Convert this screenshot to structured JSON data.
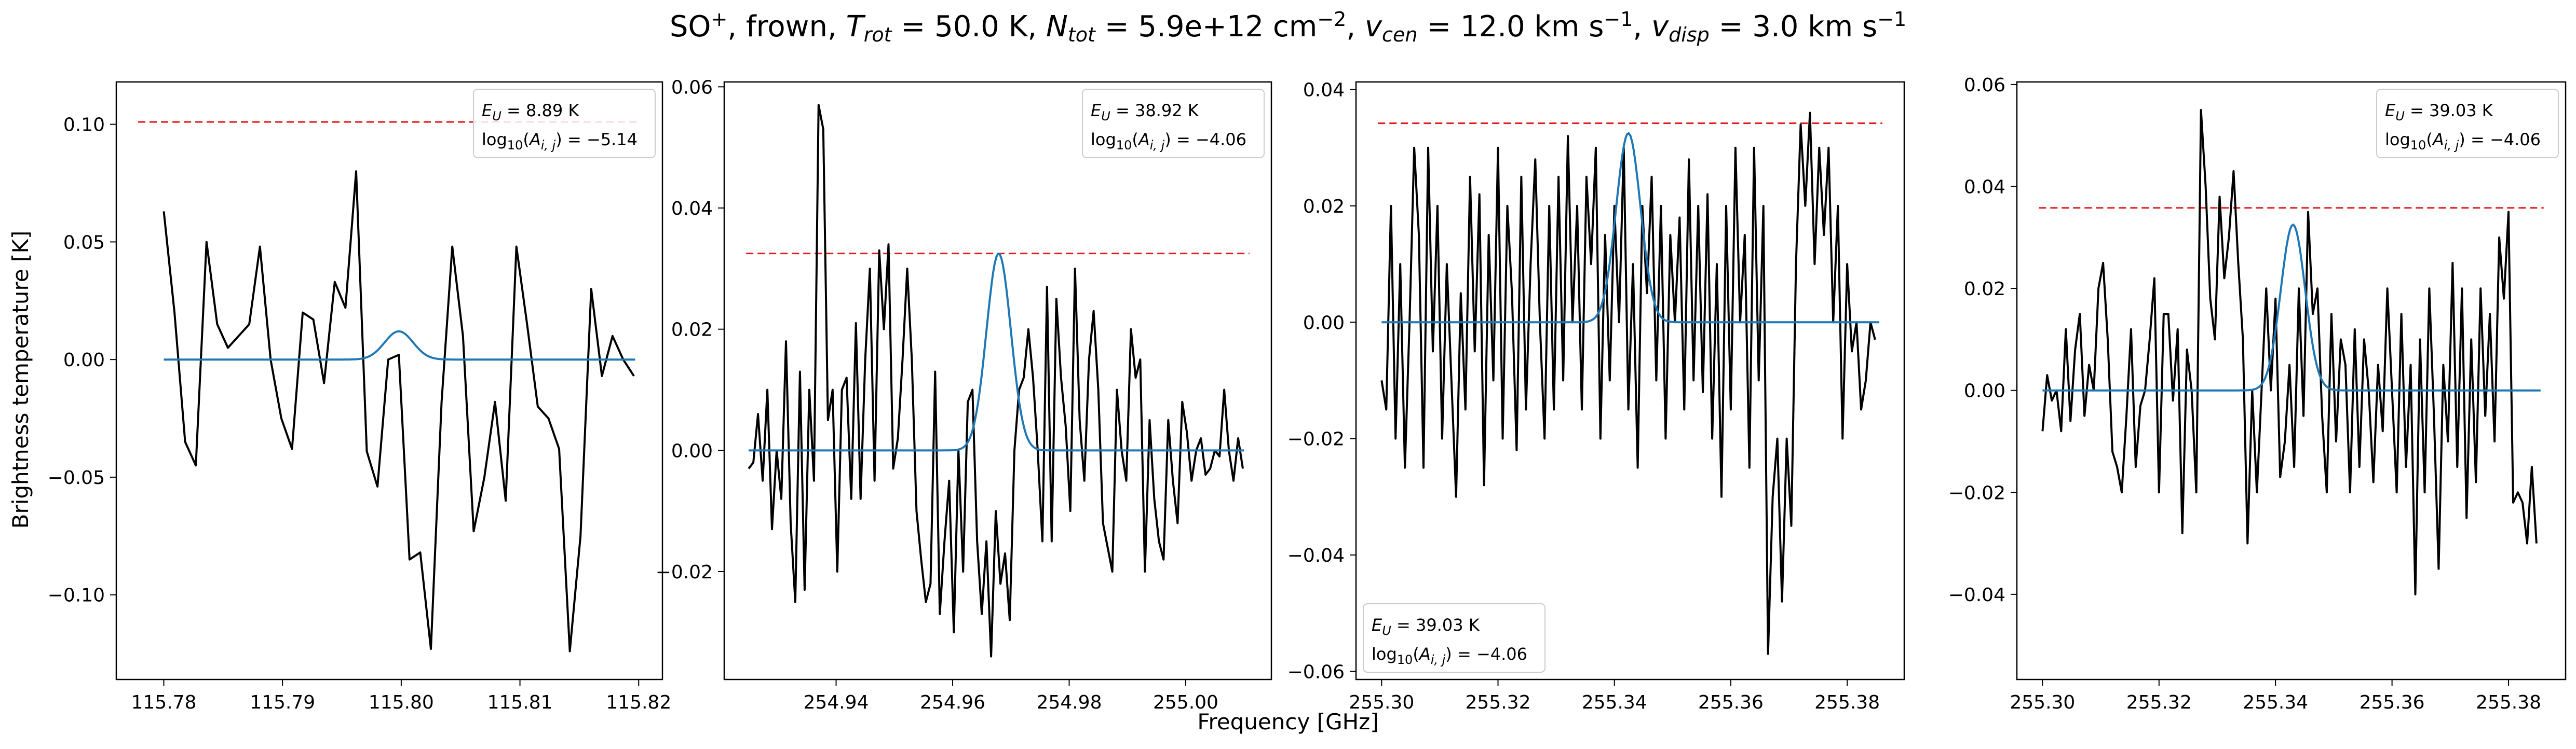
{
  "figure": {
    "title": "SO$^+$, frown, $T_{rot}$ = 50.0 K, $N_{tot}$ = 5.9e+12 cm$^{-2}$, $v_{cen}$ = 12.0 km s$^{-1}$, $v_{disp}$ = 3.0 km s$^{-1}$",
    "title_parts": {
      "species": "SO",
      "species_sup": "+",
      "mode": "frown",
      "t_rot": "50.0 K",
      "n_tot": "5.9e+12 cm",
      "n_tot_exp": "−2",
      "v_cen": "12.0 km s",
      "v_disp": "3.0 km s",
      "vel_exp": "−1"
    },
    "xlabel": "Frequency [GHz]",
    "ylabel": "Brightness temperature [K]",
    "colors": {
      "data": "#000000",
      "model": "#1f77b4",
      "threshold": "#e41a1c"
    }
  },
  "chart_data": [
    {
      "type": "line",
      "legend": {
        "eu": "8.89 K",
        "loga": "−5.14",
        "placement": "top-right"
      },
      "xlim": [
        115.776,
        115.822
      ],
      "ylim": [
        -0.136,
        0.118
      ],
      "xticks": [
        115.78,
        115.79,
        115.8,
        115.81,
        115.82
      ],
      "xtick_labels": [
        "115.78",
        "115.79",
        "115.80",
        "115.81",
        "115.82"
      ],
      "yticks": [
        -0.1,
        -0.05,
        0.0,
        0.05,
        0.1
      ],
      "ytick_labels": [
        "−0.10",
        "−0.05",
        "0.00",
        "0.05",
        "0.10"
      ],
      "threshold": 0.101,
      "model": {
        "center": 115.7998,
        "amp": 0.012,
        "sigma": 0.0012,
        "x_range": [
          115.78,
          115.8197
        ]
      },
      "x": [
        115.78,
        115.7809,
        115.7818,
        115.7827,
        115.7836,
        115.7845,
        115.7854,
        115.7863,
        115.7872,
        115.7881,
        115.789,
        115.7899,
        115.7908,
        115.7917,
        115.7926,
        115.7935,
        115.7944,
        115.7953,
        115.7962,
        115.7971,
        115.798,
        115.7989,
        115.7998,
        115.8007,
        115.8016,
        115.8025,
        115.8034,
        115.8043,
        115.8052,
        115.8061,
        115.807,
        115.8079,
        115.8088,
        115.8097,
        115.8106,
        115.8115,
        115.8124,
        115.8133,
        115.8142,
        115.8151,
        115.816,
        115.8169,
        115.8178,
        115.8187,
        115.8196
      ],
      "y": [
        0.063,
        0.02,
        -0.035,
        -0.045,
        0.05,
        0.015,
        0.005,
        0.01,
        0.015,
        0.048,
        0.0,
        -0.025,
        -0.038,
        0.02,
        0.017,
        -0.01,
        0.033,
        0.022,
        0.08,
        -0.039,
        -0.054,
        0.0,
        0.002,
        -0.085,
        -0.082,
        -0.123,
        -0.018,
        0.048,
        0.01,
        -0.073,
        -0.05,
        -0.018,
        -0.06,
        0.048,
        0.015,
        -0.02,
        -0.025,
        -0.038,
        -0.124,
        -0.075,
        0.03,
        -0.007,
        0.01,
        0.0,
        -0.007
      ]
    },
    {
      "type": "line",
      "legend": {
        "eu": "38.92 K",
        "loga": "−4.06",
        "placement": "top-right"
      },
      "xlim": [
        254.9208,
        255.0147
      ],
      "ylim": [
        -0.0378,
        0.0608
      ],
      "xticks": [
        254.94,
        254.96,
        254.98,
        255.0
      ],
      "xtick_labels": [
        "254.94",
        "254.96",
        "254.98",
        "255.00"
      ],
      "yticks": [
        -0.02,
        0.0,
        0.02,
        0.04,
        0.06
      ],
      "ytick_labels": [
        "−0.02",
        "0.00",
        "0.02",
        "0.04",
        "0.06"
      ],
      "threshold": 0.0325,
      "model": {
        "center": 254.9679,
        "amp": 0.0325,
        "sigma": 0.0021,
        "x_range": [
          254.925,
          255.01
        ]
      },
      "x": [
        254.925,
        254.9258,
        254.9266,
        254.9274,
        254.9282,
        254.929,
        254.9298,
        254.9306,
        254.9314,
        254.9322,
        254.933,
        254.9338,
        254.9346,
        254.9354,
        254.9362,
        254.937,
        254.9378,
        254.9386,
        254.9394,
        254.9402,
        254.941,
        254.9418,
        254.9426,
        254.9434,
        254.9442,
        254.945,
        254.9458,
        254.9466,
        254.9474,
        254.9482,
        254.949,
        254.9498,
        254.9506,
        254.9514,
        254.9522,
        254.953,
        254.9538,
        254.9546,
        254.9554,
        254.9562,
        254.957,
        254.9578,
        254.9586,
        254.9594,
        254.9602,
        254.961,
        254.9618,
        254.9626,
        254.9634,
        254.9642,
        254.965,
        254.9658,
        254.9666,
        254.9674,
        254.9682,
        254.969,
        254.9698,
        254.9706,
        254.9714,
        254.9722,
        254.973,
        254.9738,
        254.9746,
        254.9754,
        254.9762,
        254.977,
        254.9778,
        254.9786,
        254.9794,
        254.9802,
        254.981,
        254.9818,
        254.9826,
        254.9834,
        254.9842,
        254.985,
        254.9858,
        254.9866,
        254.9874,
        254.9882,
        254.989,
        254.9898,
        254.9906,
        254.9914,
        254.9922,
        254.993,
        254.9938,
        254.9946,
        254.9954,
        254.9962,
        254.997,
        254.9978,
        254.9986,
        254.9994,
        255.0002,
        255.001,
        255.0018,
        255.0026,
        255.0034,
        255.0042,
        255.005,
        255.0058,
        255.0066,
        255.0074,
        255.0082,
        255.009,
        255.0098
      ],
      "y": [
        -0.003,
        -0.002,
        0.006,
        -0.005,
        0.01,
        -0.013,
        0.0,
        -0.008,
        0.018,
        -0.012,
        -0.025,
        0.013,
        -0.023,
        0.01,
        -0.005,
        0.057,
        0.053,
        0.005,
        0.01,
        -0.02,
        0.01,
        0.012,
        -0.008,
        0.021,
        -0.008,
        0.015,
        0.03,
        -0.005,
        0.033,
        0.02,
        0.034,
        -0.003,
        0.002,
        0.015,
        0.03,
        0.015,
        -0.01,
        -0.018,
        -0.025,
        -0.022,
        0.013,
        -0.027,
        -0.015,
        -0.005,
        -0.03,
        0.0,
        -0.02,
        0.008,
        0.01,
        -0.015,
        -0.027,
        -0.015,
        -0.034,
        -0.01,
        -0.022,
        -0.017,
        -0.028,
        0.0,
        0.01,
        0.012,
        0.02,
        0.012,
        0.0,
        -0.015,
        0.027,
        -0.015,
        0.025,
        0.012,
        0.004,
        -0.01,
        0.03,
        0.005,
        -0.005,
        0.015,
        0.023,
        0.01,
        -0.012,
        -0.016,
        -0.02,
        0.01,
        0.0,
        -0.005,
        0.02,
        0.012,
        0.015,
        -0.02,
        0.005,
        -0.008,
        -0.015,
        -0.018,
        0.005,
        -0.005,
        -0.012,
        0.008,
        0.003,
        -0.005,
        0.0,
        0.002,
        -0.004,
        -0.003,
        0.0,
        -0.001,
        0.01,
        0.0,
        -0.005,
        0.002,
        -0.003
      ]
    },
    {
      "type": "line",
      "legend": {
        "eu": "39.03 K",
        "loga": "−4.06",
        "placement": "bottom-left"
      },
      "xlim": [
        255.2956,
        255.3898
      ],
      "ylim": [
        -0.0614,
        0.0413
      ],
      "xticks": [
        255.3,
        255.32,
        255.34,
        255.36,
        255.38
      ],
      "xtick_labels": [
        "255.30",
        "255.32",
        "255.34",
        "255.36",
        "255.38"
      ],
      "yticks": [
        -0.06,
        -0.04,
        -0.02,
        0.0,
        0.02,
        0.04
      ],
      "ytick_labels": [
        "−0.06",
        "−0.04",
        "−0.02",
        "0.00",
        "0.02",
        "0.04"
      ],
      "threshold": 0.0342,
      "model": {
        "center": 255.3424,
        "amp": 0.0325,
        "sigma": 0.0021,
        "x_range": [
          255.3,
          255.3855
        ]
      },
      "x": [
        255.3,
        255.3008,
        255.3016,
        255.3024,
        255.3032,
        255.304,
        255.3048,
        255.3056,
        255.3064,
        255.3072,
        255.308,
        255.3088,
        255.3096,
        255.3104,
        255.3112,
        255.312,
        255.3128,
        255.3136,
        255.3144,
        255.3152,
        255.316,
        255.3168,
        255.3176,
        255.3184,
        255.3192,
        255.32,
        255.3208,
        255.3216,
        255.3224,
        255.3232,
        255.324,
        255.3248,
        255.3256,
        255.3264,
        255.3272,
        255.328,
        255.3288,
        255.3296,
        255.3304,
        255.3312,
        255.332,
        255.3328,
        255.3336,
        255.3344,
        255.3352,
        255.336,
        255.3368,
        255.3376,
        255.3384,
        255.3392,
        255.34,
        255.3408,
        255.3416,
        255.3424,
        255.3432,
        255.344,
        255.3448,
        255.3456,
        255.3464,
        255.3472,
        255.348,
        255.3488,
        255.3496,
        255.3504,
        255.3512,
        255.352,
        255.3528,
        255.3536,
        255.3544,
        255.3552,
        255.356,
        255.3568,
        255.3576,
        255.3584,
        255.3592,
        255.36,
        255.3608,
        255.3616,
        255.3624,
        255.3632,
        255.364,
        255.3648,
        255.3656,
        255.3664,
        255.3672,
        255.368,
        255.3688,
        255.3696,
        255.3704,
        255.3712,
        255.372,
        255.3728,
        255.3736,
        255.3744,
        255.3752,
        255.376,
        255.3768,
        255.3776,
        255.3784,
        255.3792,
        255.38,
        255.3808,
        255.3816,
        255.3824,
        255.3832,
        255.384,
        255.3848
      ],
      "y": [
        -0.01,
        -0.015,
        0.02,
        -0.02,
        0.01,
        -0.025,
        0.0,
        0.03,
        0.015,
        -0.025,
        0.03,
        -0.005,
        0.02,
        -0.02,
        0.01,
        -0.01,
        -0.03,
        0.005,
        -0.015,
        0.025,
        -0.005,
        0.022,
        -0.028,
        0.015,
        -0.01,
        0.03,
        -0.02,
        0.02,
        0.005,
        -0.022,
        0.025,
        -0.015,
        0.01,
        0.028,
        0.0,
        -0.02,
        0.02,
        -0.015,
        0.025,
        -0.01,
        0.032,
        0.0,
        0.02,
        -0.015,
        0.025,
        0.01,
        0.03,
        -0.02,
        0.015,
        -0.01,
        0.02,
        0.0,
        0.03,
        -0.015,
        0.01,
        -0.025,
        0.02,
        0.005,
        0.025,
        -0.01,
        0.02,
        -0.02,
        0.015,
        0.0,
        0.018,
        -0.015,
        0.028,
        -0.01,
        0.02,
        -0.012,
        0.022,
        -0.02,
        0.01,
        -0.03,
        0.02,
        -0.015,
        0.03,
        0.0,
        0.015,
        -0.025,
        0.03,
        -0.01,
        0.02,
        -0.057,
        -0.03,
        -0.02,
        -0.048,
        -0.02,
        -0.035,
        0.01,
        0.034,
        0.02,
        0.036,
        0.01,
        0.03,
        0.015,
        0.03,
        0.0,
        0.02,
        -0.02,
        0.01,
        -0.005,
        0.0,
        -0.015,
        -0.01,
        0.0,
        -0.003
      ]
    },
    {
      "type": "line",
      "legend": {
        "eu": "39.03 K",
        "loga": "−4.06",
        "placement": "top-right"
      },
      "xlim": [
        255.2956,
        255.3898
      ],
      "ylim": [
        -0.0567,
        0.0605
      ],
      "xticks": [
        255.3,
        255.32,
        255.34,
        255.36,
        255.38
      ],
      "xtick_labels": [
        "255.30",
        "255.32",
        "255.34",
        "255.36",
        "255.38"
      ],
      "yticks": [
        -0.04,
        -0.02,
        0.0,
        0.02,
        0.04,
        0.06
      ],
      "ytick_labels": [
        "−0.04",
        "−0.02",
        "0.00",
        "0.02",
        "0.04",
        "0.06"
      ],
      "threshold": 0.0358,
      "model": {
        "center": 255.343,
        "amp": 0.0325,
        "sigma": 0.0021,
        "x_range": [
          255.3,
          255.3855
        ]
      },
      "x": [
        255.3,
        255.3008,
        255.3016,
        255.3024,
        255.3032,
        255.304,
        255.3048,
        255.3056,
        255.3064,
        255.3072,
        255.308,
        255.3088,
        255.3096,
        255.3104,
        255.3112,
        255.312,
        255.3128,
        255.3136,
        255.3144,
        255.3152,
        255.316,
        255.3168,
        255.3176,
        255.3184,
        255.3192,
        255.32,
        255.3208,
        255.3216,
        255.3224,
        255.3232,
        255.324,
        255.3248,
        255.3256,
        255.3264,
        255.3272,
        255.328,
        255.3288,
        255.3296,
        255.3304,
        255.3312,
        255.332,
        255.3328,
        255.3336,
        255.3344,
        255.3352,
        255.336,
        255.3368,
        255.3376,
        255.3384,
        255.3392,
        255.34,
        255.3408,
        255.3416,
        255.3424,
        255.3432,
        255.344,
        255.3448,
        255.3456,
        255.3464,
        255.3472,
        255.348,
        255.3488,
        255.3496,
        255.3504,
        255.3512,
        255.352,
        255.3528,
        255.3536,
        255.3544,
        255.3552,
        255.356,
        255.3568,
        255.3576,
        255.3584,
        255.3592,
        255.36,
        255.3608,
        255.3616,
        255.3624,
        255.3632,
        255.364,
        255.3648,
        255.3656,
        255.3664,
        255.3672,
        255.368,
        255.3688,
        255.3696,
        255.3704,
        255.3712,
        255.372,
        255.3728,
        255.3736,
        255.3744,
        255.3752,
        255.376,
        255.3768,
        255.3776,
        255.3784,
        255.3792,
        255.38,
        255.3808,
        255.3816,
        255.3824,
        255.3832,
        255.384,
        255.3848
      ],
      "y": [
        -0.008,
        0.003,
        -0.002,
        0.0,
        -0.008,
        0.012,
        -0.006,
        0.008,
        0.015,
        -0.005,
        0.005,
        0.0,
        0.02,
        0.025,
        0.01,
        -0.012,
        -0.015,
        -0.02,
        -0.005,
        0.012,
        -0.015,
        -0.003,
        0.0,
        0.01,
        0.022,
        -0.02,
        0.015,
        0.015,
        -0.002,
        0.012,
        -0.028,
        0.008,
        0.0,
        -0.02,
        0.055,
        0.04,
        0.018,
        0.01,
        0.038,
        0.022,
        0.03,
        0.043,
        0.025,
        0.01,
        -0.03,
        0.0,
        -0.02,
        0.0,
        0.02,
        0.0,
        0.018,
        -0.017,
        -0.01,
        0.005,
        -0.015,
        0.02,
        -0.005,
        0.035,
        0.015,
        0.02,
        -0.005,
        -0.02,
        0.015,
        -0.01,
        0.01,
        0.005,
        -0.02,
        0.012,
        -0.015,
        0.01,
        0.0,
        -0.018,
        0.005,
        -0.008,
        0.02,
        0.0,
        -0.02,
        0.015,
        -0.015,
        0.005,
        -0.04,
        0.01,
        -0.02,
        0.02,
        -0.005,
        -0.035,
        0.005,
        -0.01,
        0.025,
        -0.015,
        0.02,
        -0.025,
        0.01,
        -0.018,
        0.02,
        -0.005,
        0.015,
        -0.01,
        0.03,
        0.018,
        0.035,
        -0.022,
        -0.02,
        -0.022,
        -0.03,
        -0.015,
        -0.03
      ]
    }
  ]
}
